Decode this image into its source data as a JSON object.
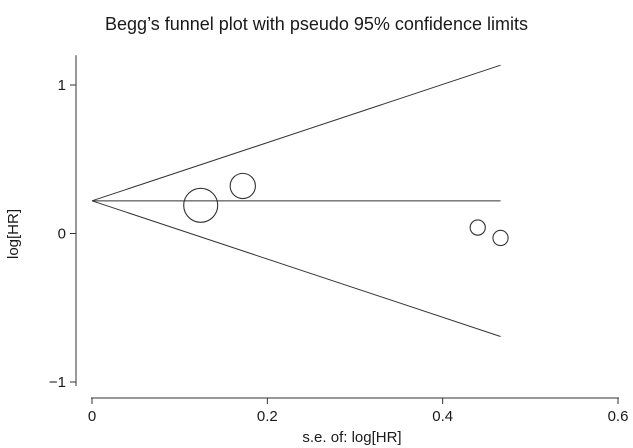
{
  "chart_data": {
    "type": "scatter",
    "title": "Begg’s funnel plot with pseudo 95% confidence limits",
    "xlabel": "s.e. of: log[HR]",
    "ylabel": "log[HR]",
    "xlim": [
      0,
      0.6
    ],
    "ylim": [
      -1,
      1.2
    ],
    "x_ticks": [
      {
        "value": 0,
        "label": "0"
      },
      {
        "value": 0.2,
        "label": "0.2"
      },
      {
        "value": 0.4,
        "label": "0.4"
      },
      {
        "value": 0.6,
        "label": "0.6"
      }
    ],
    "y_ticks": [
      {
        "value": 1,
        "label": "1"
      },
      {
        "value": 0,
        "label": "0"
      },
      {
        "value": -1,
        "label": "−1"
      }
    ],
    "pooled_estimate": 0.22,
    "funnel_se_max": 0.466,
    "points": [
      {
        "se": 0.124,
        "loghr": 0.19,
        "weight": 1.0
      },
      {
        "se": 0.172,
        "loghr": 0.32,
        "weight": 0.55
      },
      {
        "se": 0.44,
        "loghr": 0.04,
        "weight": 0.2
      },
      {
        "se": 0.466,
        "loghr": -0.03,
        "weight": 0.2
      }
    ],
    "grid": false,
    "colors": {
      "stroke": "#333333",
      "text": "#1a1a1a"
    }
  }
}
